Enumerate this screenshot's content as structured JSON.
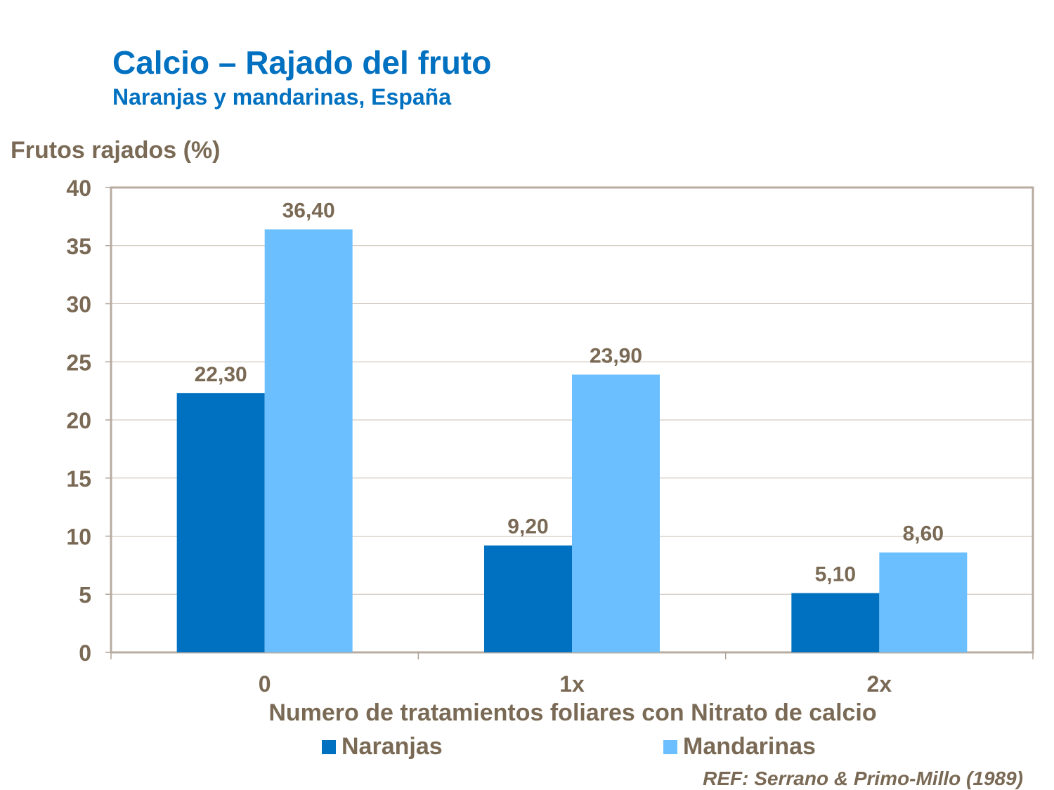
{
  "chart_data": {
    "type": "bar",
    "title": "Calcio – Rajado del fruto",
    "subtitle": "Naranjas y mandarinas, España",
    "ylabel": "Frutos rajados (%)",
    "xlabel": "Numero de tratamientos foliares con Nitrato de calcio",
    "categories": [
      "0",
      "1x",
      "2x"
    ],
    "series": [
      {
        "name": "Naranjas",
        "values": [
          22.3,
          9.2,
          5.1
        ],
        "labels": [
          "22,30",
          "9,20",
          "5,10"
        ],
        "color": "#0070c0"
      },
      {
        "name": "Mandarinas",
        "values": [
          36.4,
          23.9,
          8.6
        ],
        "labels": [
          "36,40",
          "23,90",
          "8,60"
        ],
        "color": "#6bbfff"
      }
    ],
    "ylim": [
      0,
      40
    ],
    "yticks": [
      0,
      5,
      10,
      15,
      20,
      25,
      30,
      35,
      40
    ],
    "grid": true,
    "legend": "bottom"
  },
  "reference": "REF: Serrano & Primo-Millo (1989)"
}
